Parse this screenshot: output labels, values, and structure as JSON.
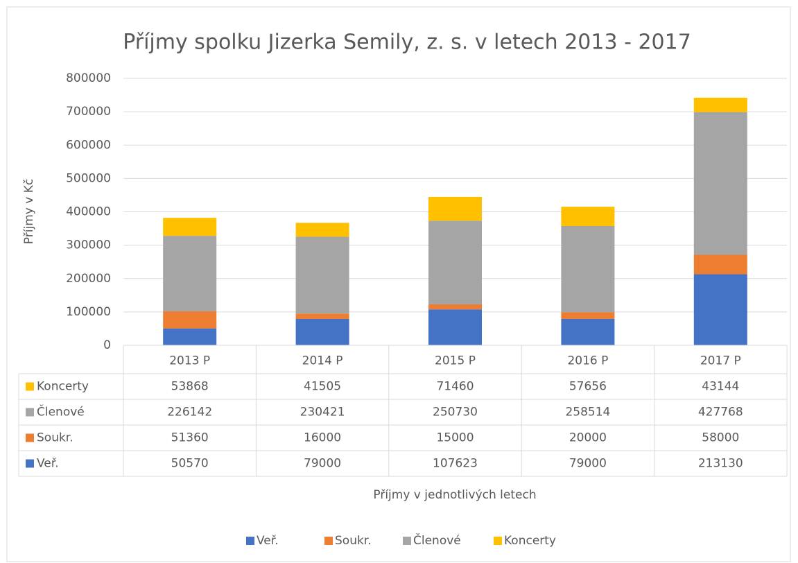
{
  "chart_data": {
    "type": "bar",
    "stacked": true,
    "title": "Příjmy spolku Jizerka Semily, z. s. v letech 2013 - 2017",
    "y_axis_label": "Příjmy v Kč",
    "x_axis_label": "Příjmy v jednotlivých letech",
    "categories": [
      "2013 P",
      "2014 P",
      "2015 P",
      "2016 P",
      "2017 P"
    ],
    "series": [
      {
        "name": "Veř.",
        "color": "#4472c4",
        "values": [
          50570,
          79000,
          107623,
          79000,
          213130
        ]
      },
      {
        "name": "Soukr.",
        "color": "#ed7d31",
        "values": [
          51360,
          16000,
          15000,
          20000,
          58000
        ]
      },
      {
        "name": "Členové",
        "color": "#a5a5a5",
        "values": [
          226142,
          230421,
          250730,
          258514,
          427768
        ]
      },
      {
        "name": "Koncerty",
        "color": "#ffc000",
        "values": [
          53868,
          41505,
          71460,
          57656,
          43144
        ]
      }
    ],
    "ylim": [
      0,
      800000
    ],
    "yticks": [
      0,
      100000,
      200000,
      300000,
      400000,
      500000,
      600000,
      700000,
      800000
    ],
    "grid": true,
    "legend": "bottom",
    "data_table": true
  }
}
